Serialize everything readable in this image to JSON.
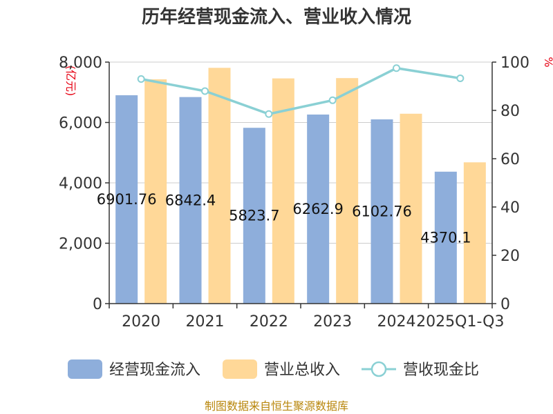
{
  "chart_data": {
    "type": "bar",
    "title": "历年经营现金流入、营业收入情况",
    "categories": [
      "2020",
      "2021",
      "2022",
      "2023",
      "2024",
      "2025Q1-Q3"
    ],
    "y_left_unit": "(亿元)",
    "y_right_unit": "%",
    "y_left_ticks": [
      "0",
      "2,000",
      "4,000",
      "6,000",
      "8,000"
    ],
    "y_right_ticks": [
      "0",
      "20",
      "40",
      "60",
      "80",
      "100"
    ],
    "ylim_left": [
      0,
      8000
    ],
    "ylim_right": [
      0,
      100
    ],
    "grid": true,
    "legend_position": "bottom",
    "series": [
      {
        "name": "经营现金流入",
        "kind": "bar",
        "axis": "left",
        "color": "#8eaedb",
        "values": [
          6901.76,
          6842.4,
          5823.7,
          6262.9,
          6102.76,
          4370.1
        ],
        "labels": [
          "6901.76",
          "6842.4",
          "5823.7",
          "6262.9",
          "6102.76",
          "4370.1"
        ]
      },
      {
        "name": "营业总收入",
        "kind": "bar",
        "axis": "left",
        "color": "#ffd898",
        "values": [
          7430,
          7810,
          7460,
          7470,
          6290,
          4680
        ]
      },
      {
        "name": "营收现金比",
        "kind": "line",
        "axis": "right",
        "color": "#8ad0d4",
        "values": [
          93,
          88,
          78.5,
          84.2,
          97.5,
          93.3
        ]
      }
    ],
    "source": "制图数据来自恒生聚源数据库"
  }
}
